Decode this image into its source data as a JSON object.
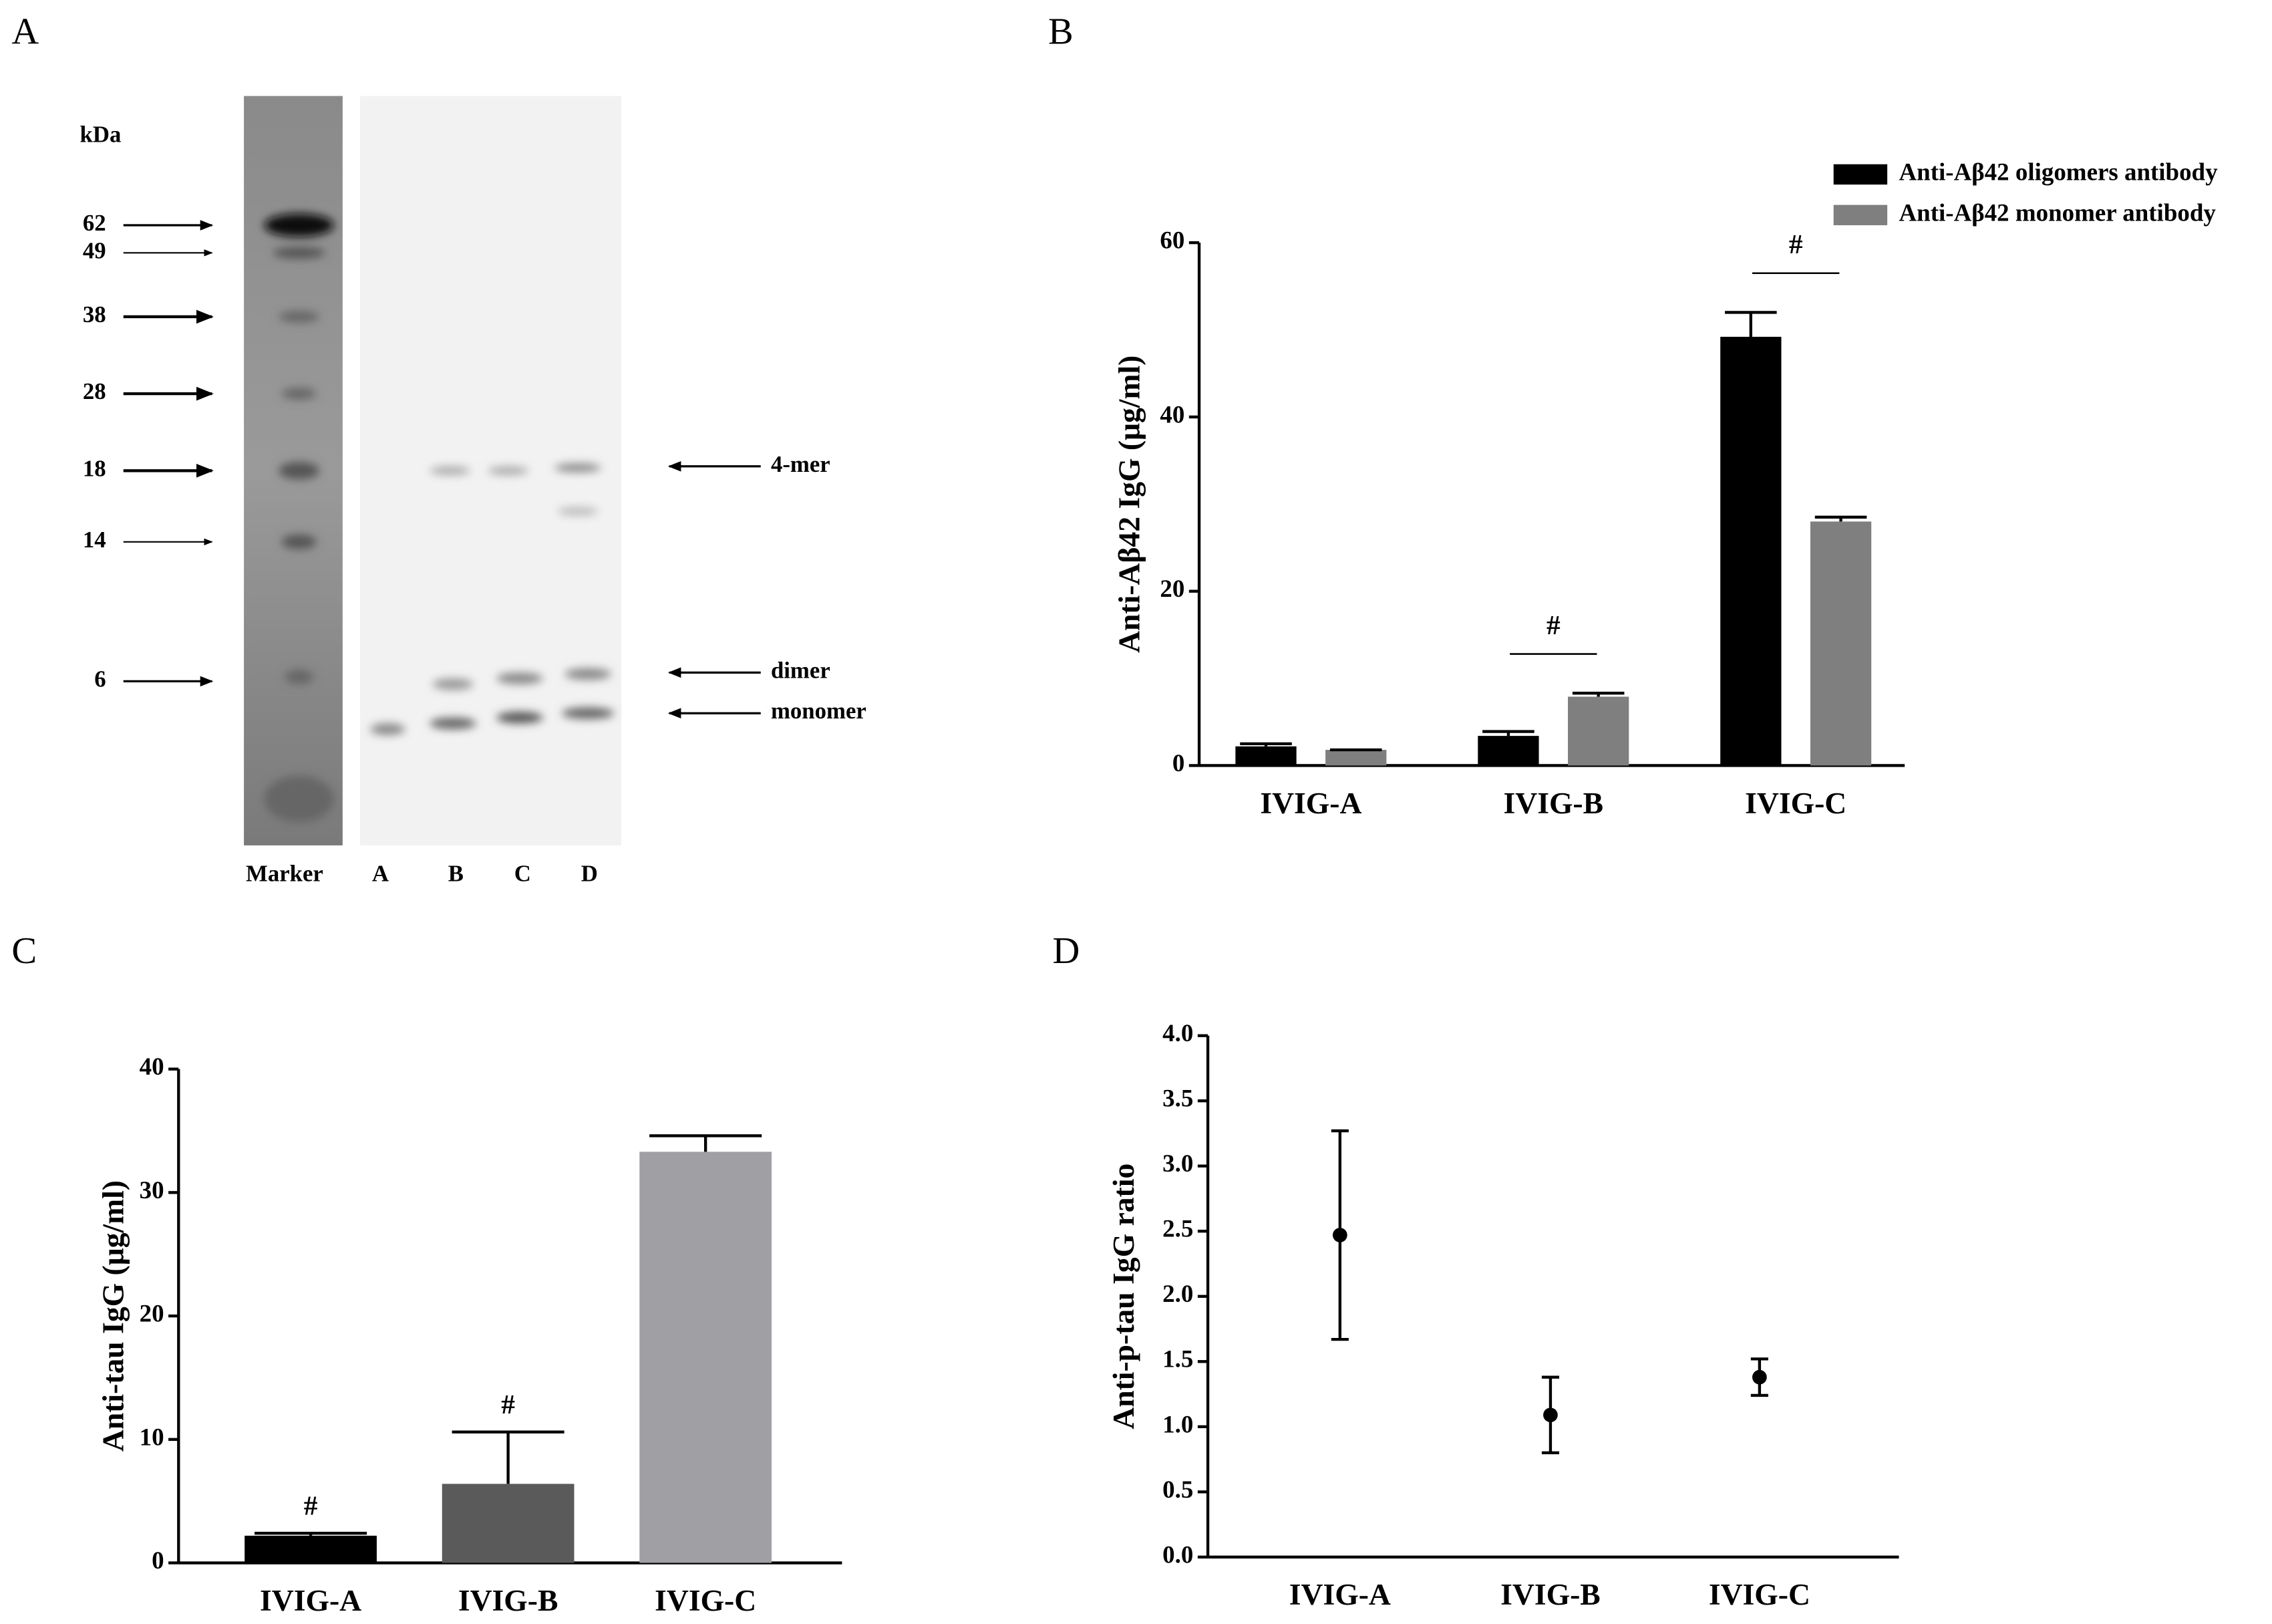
{
  "panel_labels": [
    "A",
    "B",
    "C",
    "D"
  ],
  "gel": {
    "unit": "kDa",
    "markers": [
      "62",
      "49",
      "38",
      "28",
      "18",
      "14",
      "6"
    ],
    "bands": [
      "4-mer",
      "dimer",
      "monomer"
    ],
    "lanes": [
      "Marker",
      "A",
      "B",
      "C",
      "D"
    ]
  },
  "chart_data": [
    {
      "type": "bar",
      "ylabel": "Anti-Aβ42 IgG (μg/ml)",
      "categories": [
        "IVIG-A",
        "IVIG-B",
        "IVIG-C"
      ],
      "series": [
        {
          "name": "Anti-Aβ42 oligomers antibody",
          "color": "#000000",
          "values": [
            2.2,
            3.4,
            49.2
          ],
          "errors": [
            0.3,
            0.5,
            2.8
          ]
        },
        {
          "name": "Anti-Aβ42 monomer antibody",
          "color": "#7f7f7f",
          "values": [
            1.8,
            7.9,
            28.0
          ],
          "errors": [
            0,
            0.4,
            0.5
          ]
        }
      ],
      "ylim": [
        0,
        60
      ],
      "yticks": [
        0,
        20,
        40,
        60
      ],
      "annotations": [
        "#",
        "#"
      ]
    },
    {
      "type": "bar",
      "ylabel": "Anti-tau IgG (μg/ml)",
      "categories": [
        "IVIG-A",
        "IVIG-B",
        "IVIG-C"
      ],
      "series": [
        {
          "colors": [
            "#000000",
            "#5a5a5a",
            "#a0a0a4"
          ],
          "values": [
            2.2,
            6.4,
            33.3
          ],
          "errors": [
            0.2,
            4.2,
            1.3
          ]
        }
      ],
      "ylim": [
        0,
        40
      ],
      "yticks": [
        0,
        10,
        20,
        30,
        40
      ],
      "annotations": [
        "#",
        "#"
      ]
    },
    {
      "type": "errorpoint",
      "ylabel": "Anti-p-tau IgG ratio",
      "categories": [
        "IVIG-A",
        "IVIG-B",
        "IVIG-C"
      ],
      "series": [
        {
          "color": "#000000",
          "values": [
            2.47,
            1.09,
            1.38
          ],
          "errors": [
            0.8,
            0.29,
            0.14
          ]
        }
      ],
      "ylim": [
        0,
        4
      ],
      "yticks": [
        {
          "value": 0,
          "label": "0.0"
        },
        {
          "value": 0.5,
          "label": "0.5"
        },
        {
          "value": 1,
          "label": "1.0"
        },
        {
          "value": 1.5,
          "label": "1.5"
        },
        {
          "value": 2,
          "label": "2.0"
        },
        {
          "value": 2.5,
          "label": "2.5"
        },
        {
          "value": 3,
          "label": "3.0"
        },
        {
          "value": 3.5,
          "label": "3.5"
        },
        {
          "value": 4,
          "label": "4.0"
        }
      ]
    }
  ]
}
